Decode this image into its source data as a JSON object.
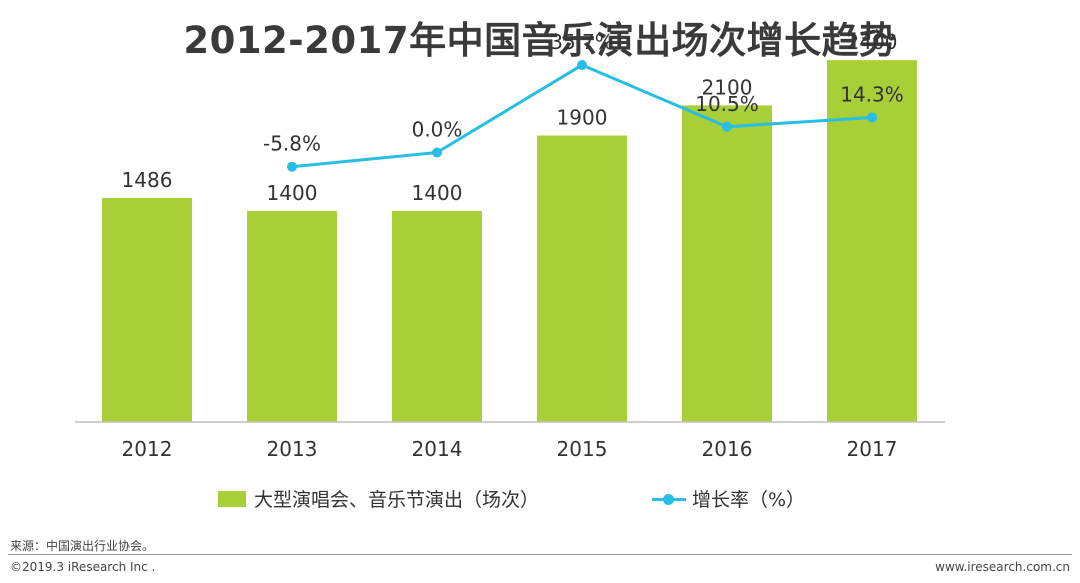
{
  "title": "2012-2017年中国音乐演出场次增长趋势",
  "chart_data": {
    "type": "bar",
    "categories": [
      "2012",
      "2013",
      "2014",
      "2015",
      "2016",
      "2017"
    ],
    "series": [
      {
        "name": "大型演唱会、音乐节演出（场次）",
        "type": "bar",
        "values": [
          1486,
          1400,
          1400,
          1900,
          2100,
          2400
        ],
        "labels": [
          "1486",
          "1400",
          "1400",
          "1900",
          "2100",
          "2400"
        ],
        "color": "#a8cf38"
      },
      {
        "name": "增长率（%）",
        "type": "line",
        "values": [
          null,
          -5.8,
          0.0,
          35.7,
          10.5,
          14.3
        ],
        "labels": [
          "",
          "-5.8%",
          "0.0%",
          "35.7%",
          "10.5%",
          "14.3%"
        ],
        "color": "#27bde5"
      }
    ],
    "bar_ylim": [
      0,
      2600
    ],
    "line_ylim": [
      -110,
      50
    ],
    "legend_position": "bottom",
    "grid": false
  },
  "source": "来源：中国演出行业协会。",
  "copyright": "©2019.3 iResearch Inc .",
  "website": "www.iresearch.com.cn"
}
